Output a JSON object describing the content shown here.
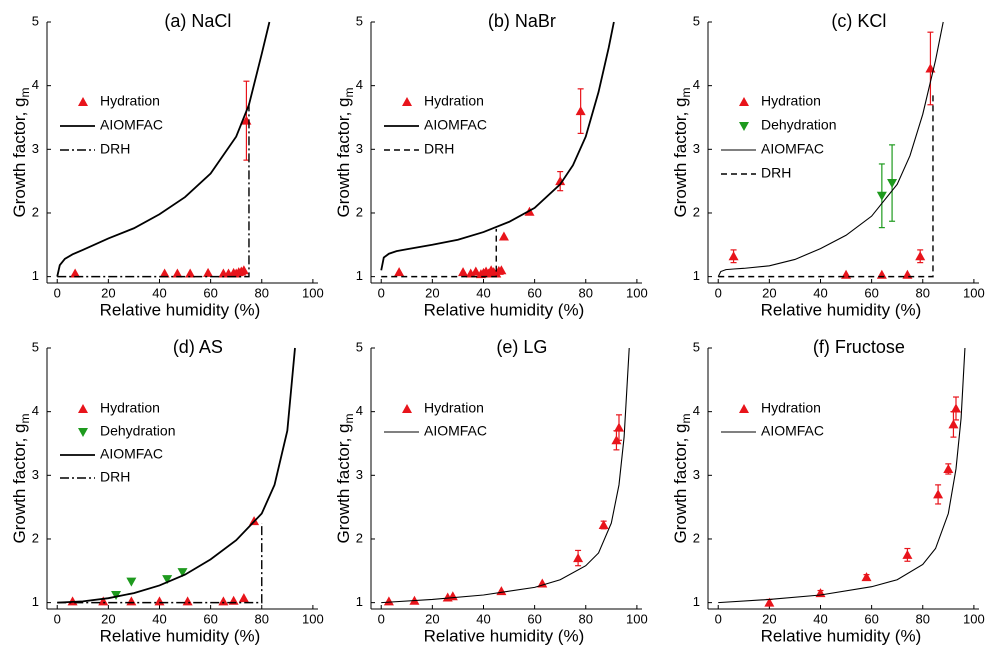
{
  "chart_data": [
    {
      "type": "scatter",
      "title": "(a) NaCl",
      "xlabel": "Relative humidity (%)",
      "ylabel": "Growth factor, g",
      "ylabel_sub": "m",
      "xlim": [
        -4,
        102
      ],
      "ylim": [
        0.9,
        5
      ],
      "xticks": [
        0,
        20,
        40,
        60,
        80,
        100
      ],
      "yticks": [
        1,
        2,
        3,
        4,
        5
      ],
      "legend": "upper left",
      "series": [
        {
          "name": "Hydration",
          "type": "scatter",
          "marker": "up",
          "color": "#e8141b",
          "x": [
            7,
            42,
            47,
            52,
            59,
            65,
            67,
            69,
            70,
            71,
            72,
            73,
            74
          ],
          "values": [
            1.05,
            1.05,
            1.05,
            1.05,
            1.06,
            1.05,
            1.05,
            1.06,
            1.05,
            1.07,
            1.08,
            1.1,
            3.45
          ],
          "errors": [
            null,
            null,
            null,
            null,
            null,
            null,
            null,
            null,
            null,
            null,
            null,
            null,
            0.62
          ]
        },
        {
          "name": "AIOMFAC",
          "type": "line",
          "dash": "solid",
          "line_width": 1.8,
          "color": "#000000",
          "x": [
            0,
            1,
            3,
            6,
            10,
            20,
            30,
            40,
            50,
            60,
            70,
            75,
            80,
            83
          ],
          "values": [
            1.0,
            1.18,
            1.28,
            1.35,
            1.42,
            1.6,
            1.76,
            1.98,
            2.25,
            2.62,
            3.2,
            3.7,
            4.5,
            5.0
          ]
        },
        {
          "name": "DRH",
          "type": "line",
          "dash": "dashdot",
          "line_width": 1.4,
          "color": "#000000",
          "x": [
            0,
            75,
            75
          ],
          "values": [
            1,
            1,
            3.72
          ]
        }
      ]
    },
    {
      "type": "scatter",
      "title": "(b) NaBr",
      "xlabel": "Relative humidity (%)",
      "ylabel": "Growth factor, g",
      "ylabel_sub": "m",
      "xlim": [
        -4,
        102
      ],
      "ylim": [
        0.9,
        5
      ],
      "xticks": [
        0,
        20,
        40,
        60,
        80,
        100
      ],
      "yticks": [
        1,
        2,
        3,
        4,
        5
      ],
      "legend": "upper left",
      "series": [
        {
          "name": "Hydration",
          "type": "scatter",
          "marker": "up",
          "color": "#e8141b",
          "x": [
            7,
            32,
            35,
            37,
            39,
            40,
            41,
            42,
            43,
            44,
            45,
            46,
            47,
            48,
            58,
            70,
            78
          ],
          "values": [
            1.07,
            1.07,
            1.05,
            1.08,
            1.04,
            1.06,
            1.08,
            1.05,
            1.1,
            1.07,
            1.05,
            1.09,
            1.1,
            1.63,
            2.02,
            2.5,
            3.6
          ],
          "errors": [
            null,
            null,
            null,
            null,
            null,
            null,
            null,
            null,
            null,
            null,
            null,
            null,
            null,
            null,
            null,
            0.15,
            0.35
          ]
        },
        {
          "name": "AIOMFAC",
          "type": "line",
          "dash": "solid",
          "line_width": 1.8,
          "color": "#000000",
          "x": [
            0,
            1,
            3,
            6,
            10,
            20,
            30,
            40,
            50,
            60,
            70,
            75,
            80,
            85,
            89,
            91
          ],
          "values": [
            1.1,
            1.3,
            1.36,
            1.4,
            1.43,
            1.5,
            1.58,
            1.7,
            1.86,
            2.08,
            2.45,
            2.75,
            3.2,
            3.9,
            4.6,
            5.0
          ]
        },
        {
          "name": "DRH",
          "type": "line",
          "dash": "dashed",
          "line_width": 1.4,
          "color": "#000000",
          "x": [
            0,
            45,
            45
          ],
          "values": [
            1,
            1,
            1.75
          ]
        }
      ]
    },
    {
      "type": "scatter",
      "title": "(c) KCl",
      "xlabel": "Relative humidity (%)",
      "ylabel": "Growth factor, g",
      "ylabel_sub": "m",
      "xlim": [
        -4,
        102
      ],
      "ylim": [
        0.9,
        5
      ],
      "xticks": [
        0,
        20,
        40,
        60,
        80,
        100
      ],
      "yticks": [
        1,
        2,
        3,
        4,
        5
      ],
      "legend": "upper left",
      "series": [
        {
          "name": "Hydration",
          "type": "scatter",
          "marker": "up",
          "color": "#e8141b",
          "x": [
            6,
            50,
            64,
            74,
            79,
            83
          ],
          "values": [
            1.32,
            1.03,
            1.03,
            1.03,
            1.32,
            4.27
          ],
          "errors": [
            0.1,
            null,
            null,
            null,
            0.1,
            0.57
          ]
        },
        {
          "name": "Dehydration",
          "type": "scatter",
          "marker": "down",
          "color": "#1e9a1e",
          "x": [
            64,
            68
          ],
          "values": [
            2.27,
            2.47
          ],
          "errors": [
            0.5,
            0.6
          ]
        },
        {
          "name": "AIOMFAC",
          "type": "line",
          "dash": "solid",
          "line_width": 1.1,
          "color": "#000000",
          "x": [
            0,
            1,
            3,
            6,
            10,
            20,
            30,
            40,
            50,
            60,
            70,
            75,
            80,
            85,
            88
          ],
          "values": [
            1.0,
            1.08,
            1.11,
            1.12,
            1.13,
            1.17,
            1.27,
            1.44,
            1.65,
            1.95,
            2.45,
            2.9,
            3.55,
            4.4,
            5.0
          ]
        },
        {
          "name": "DRH",
          "type": "line",
          "dash": "dashed",
          "line_width": 1.4,
          "color": "#000000",
          "x": [
            0,
            84,
            84
          ],
          "values": [
            1,
            1,
            3.85
          ]
        }
      ]
    },
    {
      "type": "scatter",
      "title": "(d) AS",
      "xlabel": "Relative humidity (%)",
      "ylabel": "Growth factor, g",
      "ylabel_sub": "m",
      "xlim": [
        -4,
        102
      ],
      "ylim": [
        0.9,
        5
      ],
      "xticks": [
        0,
        20,
        40,
        60,
        80,
        100
      ],
      "yticks": [
        1,
        2,
        3,
        4,
        5
      ],
      "legend": "upper left",
      "series": [
        {
          "name": "Hydration",
          "type": "scatter",
          "marker": "up",
          "color": "#e8141b",
          "x": [
            6,
            18,
            29,
            40,
            51,
            65,
            69,
            73,
            77
          ],
          "values": [
            1.02,
            1.02,
            1.02,
            1.02,
            1.02,
            1.02,
            1.03,
            1.07,
            2.28
          ]
        },
        {
          "name": "Dehydration",
          "type": "scatter",
          "marker": "down",
          "color": "#1e9a1e",
          "x": [
            23,
            29,
            43,
            49
          ],
          "values": [
            1.12,
            1.33,
            1.37,
            1.48
          ]
        },
        {
          "name": "AIOMFAC",
          "type": "line",
          "dash": "solid",
          "line_width": 1.8,
          "color": "#000000",
          "x": [
            0,
            10,
            20,
            30,
            40,
            50,
            60,
            70,
            80,
            85,
            90,
            93
          ],
          "values": [
            1.0,
            1.02,
            1.07,
            1.15,
            1.27,
            1.44,
            1.68,
            1.98,
            2.4,
            2.85,
            3.7,
            5.0
          ]
        },
        {
          "name": "DRH",
          "type": "line",
          "dash": "dashdot",
          "line_width": 1.4,
          "color": "#000000",
          "x": [
            0,
            80,
            80
          ],
          "values": [
            1,
            1,
            2.25
          ]
        }
      ]
    },
    {
      "type": "scatter",
      "title": "(e) LG",
      "xlabel": "Relative humidity (%)",
      "ylabel": "Growth factor, g",
      "ylabel_sub": "m",
      "xlim": [
        -4,
        102
      ],
      "ylim": [
        0.9,
        5
      ],
      "xticks": [
        0,
        20,
        40,
        60,
        80,
        100
      ],
      "yticks": [
        1,
        2,
        3,
        4,
        5
      ],
      "legend": "upper left",
      "series": [
        {
          "name": "Hydration",
          "type": "scatter",
          "marker": "up",
          "color": "#e8141b",
          "x": [
            3,
            13,
            26,
            28,
            47,
            63,
            77,
            87,
            92,
            93
          ],
          "values": [
            1.02,
            1.03,
            1.08,
            1.1,
            1.18,
            1.3,
            1.7,
            2.22,
            3.55,
            3.75
          ],
          "errors": [
            null,
            null,
            null,
            null,
            null,
            null,
            0.12,
            0.06,
            0.15,
            0.2
          ]
        },
        {
          "name": "AIOMFAC",
          "type": "line",
          "dash": "solid",
          "line_width": 1.1,
          "color": "#000000",
          "x": [
            0,
            20,
            40,
            60,
            70,
            80,
            85,
            90,
            93,
            95,
            96,
            97
          ],
          "values": [
            1.0,
            1.05,
            1.12,
            1.24,
            1.36,
            1.58,
            1.78,
            2.25,
            2.85,
            3.6,
            4.3,
            5.0
          ]
        }
      ]
    },
    {
      "type": "scatter",
      "title": "(f) Fructose",
      "xlabel": "Relative humidity (%)",
      "ylabel": "Growth factor, g",
      "ylabel_sub": "m",
      "xlim": [
        -4,
        102
      ],
      "ylim": [
        0.9,
        5
      ],
      "xticks": [
        0,
        20,
        40,
        60,
        80,
        100
      ],
      "yticks": [
        1,
        2,
        3,
        4,
        5
      ],
      "legend": "upper left",
      "series": [
        {
          "name": "Hydration",
          "type": "scatter",
          "marker": "up",
          "color": "#e8141b",
          "x": [
            20,
            40,
            58,
            74,
            86,
            90,
            92,
            93
          ],
          "values": [
            1.0,
            1.15,
            1.4,
            1.75,
            2.7,
            3.1,
            3.8,
            4.05
          ],
          "errors": [
            0.05,
            0.04,
            0.04,
            0.1,
            0.15,
            0.08,
            0.2,
            0.18
          ]
        },
        {
          "name": "AIOMFAC",
          "type": "line",
          "dash": "solid",
          "line_width": 1.1,
          "color": "#000000",
          "x": [
            0,
            20,
            40,
            60,
            70,
            80,
            85,
            90,
            93,
            95,
            96.5
          ],
          "values": [
            1.0,
            1.05,
            1.12,
            1.25,
            1.36,
            1.6,
            1.85,
            2.4,
            3.1,
            3.9,
            5.0
          ]
        }
      ]
    }
  ]
}
